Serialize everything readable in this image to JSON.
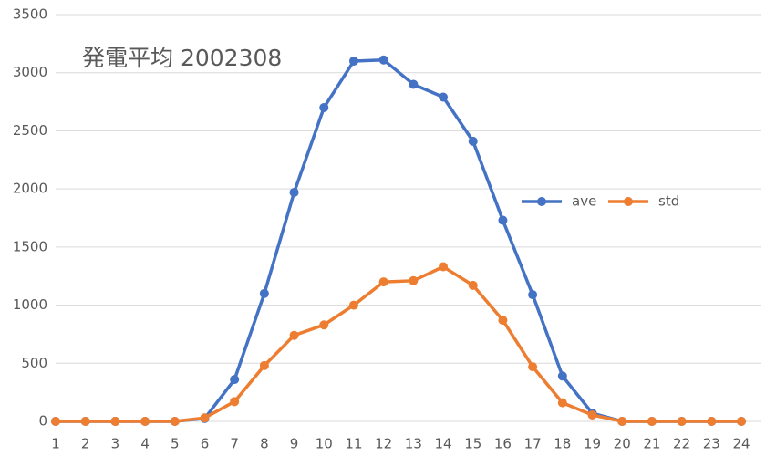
{
  "chart_data": {
    "type": "line",
    "title": "発電平均 2002308",
    "categories": [
      "1",
      "2",
      "3",
      "4",
      "5",
      "6",
      "7",
      "8",
      "9",
      "10",
      "11",
      "12",
      "13",
      "14",
      "15",
      "16",
      "17",
      "18",
      "19",
      "20",
      "21",
      "22",
      "23",
      "24"
    ],
    "series": [
      {
        "name": "ave",
        "color": "#4472c4",
        "values": [
          0,
          0,
          0,
          0,
          0,
          25,
          360,
          1100,
          1970,
          2700,
          3100,
          3110,
          2900,
          2790,
          2410,
          1730,
          1090,
          390,
          70,
          0,
          0,
          0,
          0,
          0
        ]
      },
      {
        "name": "std",
        "color": "#ed7d31",
        "values": [
          0,
          0,
          0,
          0,
          0,
          30,
          170,
          480,
          740,
          830,
          1000,
          1200,
          1210,
          1330,
          1170,
          870,
          470,
          160,
          55,
          0,
          0,
          0,
          0,
          0
        ]
      }
    ],
    "ylim": [
      0,
      3500
    ],
    "yticks": [
      0,
      500,
      1000,
      1500,
      2000,
      2500,
      3000,
      3500
    ],
    "grid": true,
    "legend": "right"
  }
}
